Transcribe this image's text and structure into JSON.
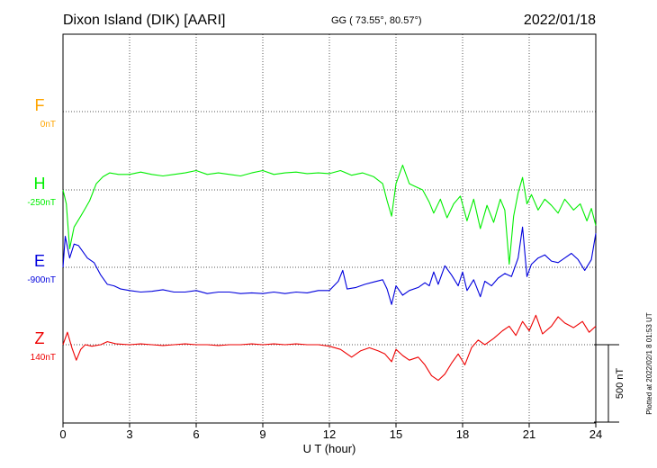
{
  "header": {
    "station": "Dixon Island (DIK)  [AARI]",
    "coords": "GG ( 73.55°,  80.57°)",
    "date": "2022/01/18"
  },
  "footer": {
    "plotted": "Plotted at 2022/02/1 8 01:53 UT"
  },
  "colors": {
    "F": "#ffa500",
    "H": "#00ee00",
    "E": "#0000dd",
    "Z": "#ee0000"
  },
  "chart_data": {
    "type": "line",
    "xlabel": "U T (hour)",
    "xlim": [
      0,
      24
    ],
    "xticks": [
      "0",
      "3",
      "6",
      "9",
      "12",
      "15",
      "18",
      "21",
      "24"
    ],
    "scale_bar": {
      "label": "500 nT",
      "value_nT": 500
    },
    "series": [
      {
        "name": "F",
        "baseline": "0nT",
        "color": "#ffa500",
        "points": []
      },
      {
        "name": "H",
        "baseline": "-250nT",
        "color": "#00ee00",
        "points": [
          [
            0,
            0
          ],
          [
            0.15,
            -90
          ],
          [
            0.3,
            -380
          ],
          [
            0.5,
            -240
          ],
          [
            0.8,
            -170
          ],
          [
            1.0,
            -120
          ],
          [
            1.2,
            -70
          ],
          [
            1.5,
            40
          ],
          [
            1.8,
            85
          ],
          [
            2.1,
            110
          ],
          [
            2.5,
            100
          ],
          [
            3.0,
            100
          ],
          [
            3.5,
            115
          ],
          [
            4.0,
            100
          ],
          [
            4.5,
            90
          ],
          [
            5.0,
            100
          ],
          [
            5.5,
            110
          ],
          [
            6.0,
            125
          ],
          [
            6.5,
            100
          ],
          [
            7.0,
            110
          ],
          [
            7.5,
            100
          ],
          [
            8.0,
            90
          ],
          [
            8.5,
            110
          ],
          [
            9.0,
            125
          ],
          [
            9.5,
            100
          ],
          [
            10.0,
            110
          ],
          [
            10.5,
            115
          ],
          [
            11.0,
            105
          ],
          [
            11.5,
            110
          ],
          [
            12.0,
            105
          ],
          [
            12.5,
            125
          ],
          [
            13.0,
            95
          ],
          [
            13.5,
            110
          ],
          [
            14.0,
            85
          ],
          [
            14.4,
            40
          ],
          [
            14.6,
            -70
          ],
          [
            14.8,
            -170
          ],
          [
            15.0,
            40
          ],
          [
            15.3,
            160
          ],
          [
            15.6,
            40
          ],
          [
            15.9,
            20
          ],
          [
            16.2,
            0
          ],
          [
            16.5,
            -80
          ],
          [
            16.7,
            -150
          ],
          [
            17.0,
            -60
          ],
          [
            17.3,
            -180
          ],
          [
            17.6,
            -90
          ],
          [
            17.9,
            -40
          ],
          [
            18.2,
            -200
          ],
          [
            18.5,
            -60
          ],
          [
            18.8,
            -250
          ],
          [
            19.1,
            -100
          ],
          [
            19.4,
            -210
          ],
          [
            19.7,
            -60
          ],
          [
            19.9,
            -130
          ],
          [
            20.1,
            -480
          ],
          [
            20.3,
            -170
          ],
          [
            20.5,
            -20
          ],
          [
            20.7,
            80
          ],
          [
            20.9,
            -90
          ],
          [
            21.1,
            -30
          ],
          [
            21.4,
            -130
          ],
          [
            21.7,
            -60
          ],
          [
            22.0,
            -100
          ],
          [
            22.3,
            -150
          ],
          [
            22.6,
            -60
          ],
          [
            23.0,
            -130
          ],
          [
            23.3,
            -90
          ],
          [
            23.6,
            -200
          ],
          [
            23.8,
            -120
          ],
          [
            24.0,
            -230
          ]
        ]
      },
      {
        "name": "E",
        "baseline": "-900nT",
        "color": "#0000dd",
        "points": [
          [
            0,
            0
          ],
          [
            0.1,
            200
          ],
          [
            0.3,
            60
          ],
          [
            0.5,
            150
          ],
          [
            0.7,
            140
          ],
          [
            0.9,
            100
          ],
          [
            1.1,
            60
          ],
          [
            1.4,
            30
          ],
          [
            1.7,
            -50
          ],
          [
            2.0,
            -110
          ],
          [
            2.3,
            -120
          ],
          [
            2.6,
            -140
          ],
          [
            3.0,
            -150
          ],
          [
            3.5,
            -160
          ],
          [
            4.0,
            -155
          ],
          [
            4.5,
            -145
          ],
          [
            5.0,
            -160
          ],
          [
            5.5,
            -160
          ],
          [
            6.0,
            -150
          ],
          [
            6.5,
            -170
          ],
          [
            7.0,
            -160
          ],
          [
            7.5,
            -160
          ],
          [
            8.0,
            -170
          ],
          [
            8.5,
            -165
          ],
          [
            9.0,
            -170
          ],
          [
            9.5,
            -160
          ],
          [
            10.0,
            -170
          ],
          [
            10.5,
            -160
          ],
          [
            11.0,
            -165
          ],
          [
            11.5,
            -150
          ],
          [
            12.0,
            -150
          ],
          [
            12.4,
            -90
          ],
          [
            12.6,
            -20
          ],
          [
            12.8,
            -140
          ],
          [
            13.2,
            -130
          ],
          [
            13.6,
            -110
          ],
          [
            14.0,
            -95
          ],
          [
            14.4,
            -80
          ],
          [
            14.6,
            -140
          ],
          [
            14.8,
            -240
          ],
          [
            15.0,
            -120
          ],
          [
            15.3,
            -180
          ],
          [
            15.6,
            -150
          ],
          [
            16.0,
            -130
          ],
          [
            16.3,
            -100
          ],
          [
            16.5,
            -120
          ],
          [
            16.7,
            -30
          ],
          [
            16.9,
            -110
          ],
          [
            17.2,
            10
          ],
          [
            17.5,
            -50
          ],
          [
            17.8,
            -120
          ],
          [
            18.0,
            -30
          ],
          [
            18.2,
            -150
          ],
          [
            18.5,
            -80
          ],
          [
            18.8,
            -190
          ],
          [
            19.0,
            -90
          ],
          [
            19.3,
            -120
          ],
          [
            19.6,
            -70
          ],
          [
            19.9,
            -40
          ],
          [
            20.2,
            -60
          ],
          [
            20.5,
            60
          ],
          [
            20.7,
            260
          ],
          [
            20.9,
            -60
          ],
          [
            21.1,
            20
          ],
          [
            21.4,
            60
          ],
          [
            21.7,
            80
          ],
          [
            22.0,
            40
          ],
          [
            22.3,
            30
          ],
          [
            22.6,
            60
          ],
          [
            22.9,
            90
          ],
          [
            23.2,
            50
          ],
          [
            23.5,
            -20
          ],
          [
            23.8,
            50
          ],
          [
            24.0,
            220
          ]
        ]
      },
      {
        "name": "Z",
        "baseline": "140nT",
        "color": "#ee0000",
        "points": [
          [
            0,
            0
          ],
          [
            0.2,
            80
          ],
          [
            0.4,
            -20
          ],
          [
            0.6,
            -100
          ],
          [
            0.8,
            -30
          ],
          [
            1.0,
            0
          ],
          [
            1.3,
            -10
          ],
          [
            1.7,
            0
          ],
          [
            2.0,
            20
          ],
          [
            2.4,
            5
          ],
          [
            3.0,
            0
          ],
          [
            3.5,
            5
          ],
          [
            4.0,
            0
          ],
          [
            4.5,
            -5
          ],
          [
            5.0,
            0
          ],
          [
            5.5,
            5
          ],
          [
            6.0,
            0
          ],
          [
            6.5,
            0
          ],
          [
            7.0,
            -5
          ],
          [
            7.5,
            0
          ],
          [
            8.0,
            0
          ],
          [
            8.5,
            5
          ],
          [
            9.0,
            0
          ],
          [
            9.5,
            5
          ],
          [
            10.0,
            0
          ],
          [
            10.5,
            5
          ],
          [
            11.0,
            0
          ],
          [
            11.5,
            0
          ],
          [
            12.0,
            -10
          ],
          [
            12.5,
            -30
          ],
          [
            13.0,
            -80
          ],
          [
            13.4,
            -40
          ],
          [
            13.8,
            -20
          ],
          [
            14.2,
            -40
          ],
          [
            14.5,
            -60
          ],
          [
            14.8,
            -110
          ],
          [
            15.0,
            -30
          ],
          [
            15.3,
            -70
          ],
          [
            15.6,
            -100
          ],
          [
            16.0,
            -80
          ],
          [
            16.3,
            -130
          ],
          [
            16.6,
            -200
          ],
          [
            16.9,
            -230
          ],
          [
            17.2,
            -190
          ],
          [
            17.5,
            -120
          ],
          [
            17.8,
            -60
          ],
          [
            18.1,
            -130
          ],
          [
            18.4,
            -20
          ],
          [
            18.7,
            30
          ],
          [
            19.0,
            0
          ],
          [
            19.4,
            40
          ],
          [
            19.8,
            90
          ],
          [
            20.1,
            120
          ],
          [
            20.4,
            60
          ],
          [
            20.7,
            150
          ],
          [
            21.0,
            90
          ],
          [
            21.3,
            190
          ],
          [
            21.6,
            70
          ],
          [
            22.0,
            120
          ],
          [
            22.3,
            180
          ],
          [
            22.6,
            140
          ],
          [
            23.0,
            110
          ],
          [
            23.4,
            150
          ],
          [
            23.7,
            80
          ],
          [
            24.0,
            120
          ]
        ]
      }
    ]
  }
}
